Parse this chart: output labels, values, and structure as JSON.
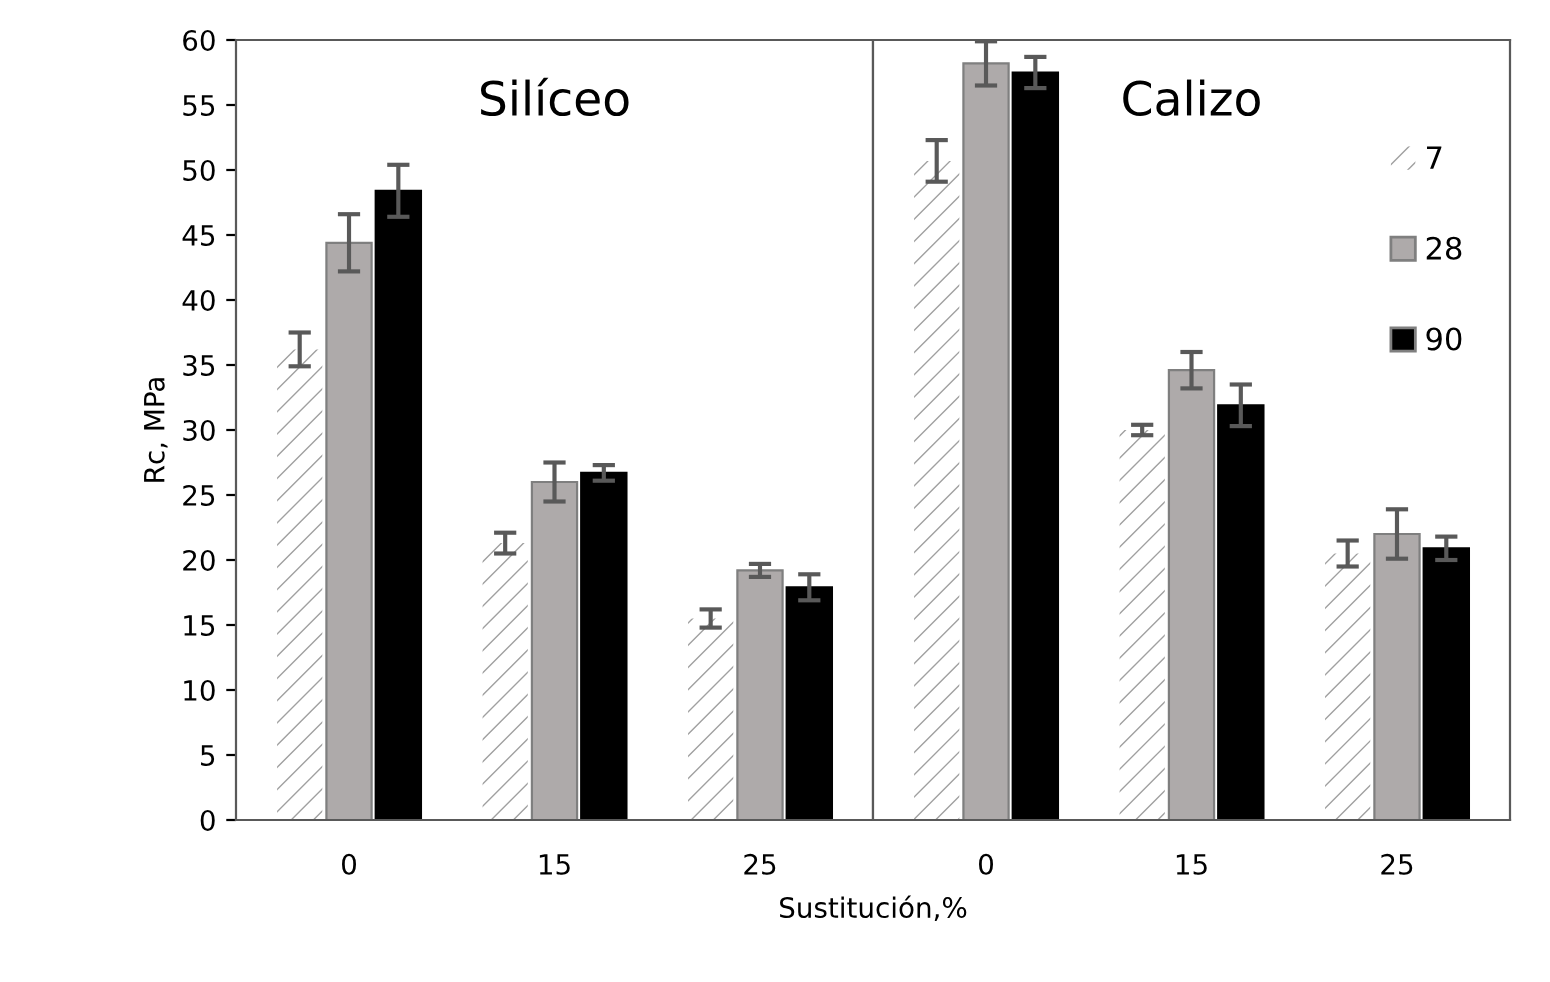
{
  "chart_data": [
    {
      "type": "bar",
      "title": "Silíceo",
      "xlabel": "Sustitución,%",
      "ylabel": "Rc, MPa",
      "categories": [
        "0",
        "15",
        "25"
      ],
      "ylim": [
        0,
        60
      ],
      "yticks": [
        0,
        5,
        10,
        15,
        20,
        25,
        30,
        35,
        40,
        45,
        50,
        55,
        60
      ],
      "grid": false,
      "legend": "top right",
      "series": [
        {
          "name": "7",
          "color": "#ffffff",
          "values": [
            36.2,
            21.3,
            15.5
          ],
          "errors": [
            1.3,
            0.8,
            0.7
          ]
        },
        {
          "name": "28",
          "color": "#aeaaaa",
          "values": [
            44.4,
            26.0,
            19.2
          ],
          "errors": [
            2.2,
            1.5,
            0.5
          ]
        },
        {
          "name": "90",
          "color": "#000000",
          "values": [
            48.4,
            26.7,
            17.9
          ],
          "errors": [
            2.0,
            0.6,
            1.0
          ]
        }
      ]
    },
    {
      "type": "bar",
      "title": "Calizo",
      "categories": [
        "0",
        "15",
        "25"
      ],
      "ylim": [
        0,
        60
      ],
      "yticks": [
        0,
        5,
        10,
        15,
        20,
        25,
        30,
        35,
        40,
        45,
        50,
        55,
        60
      ],
      "tick_labels": "x",
      "grid": false,
      "series": [
        {
          "name": "7",
          "color": "#ffffff",
          "values": [
            50.7,
            30.0,
            20.5
          ],
          "errors": [
            1.6,
            0.4,
            1.0
          ]
        },
        {
          "name": "28",
          "color": "#aeaaaa",
          "values": [
            58.2,
            34.6,
            22.0
          ],
          "errors": [
            1.7,
            1.4,
            1.9
          ]
        },
        {
          "name": "90",
          "color": "#000000",
          "values": [
            57.5,
            31.9,
            20.9
          ],
          "errors": [
            1.2,
            1.6,
            0.9
          ]
        }
      ]
    }
  ]
}
